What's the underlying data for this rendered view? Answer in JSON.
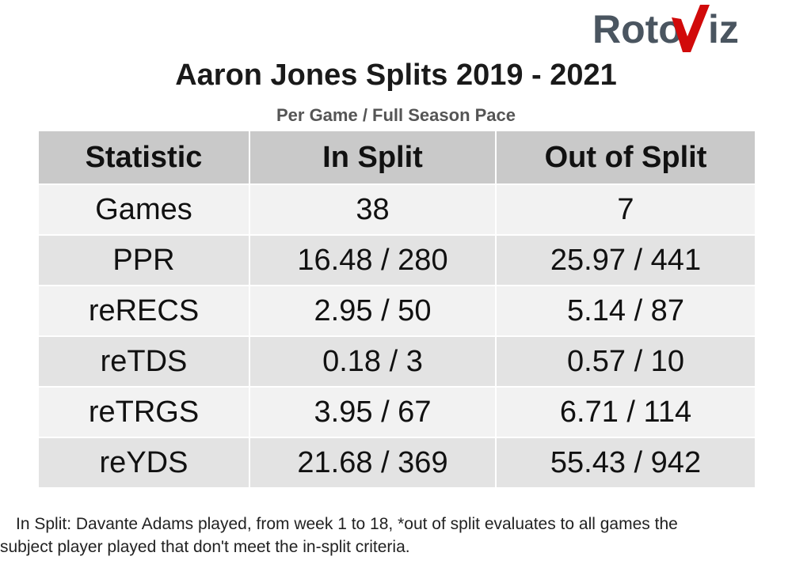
{
  "logo": {
    "text_left": "Roto",
    "text_right": "iz",
    "colors": {
      "text": "#4a5560",
      "accent": "#d10a0a"
    }
  },
  "header": {
    "title": "Aaron Jones Splits 2019 - 2021",
    "subtitle": "Per Game / Full Season Pace"
  },
  "table": {
    "columns": [
      "Statistic",
      "In Split",
      "Out of Split"
    ],
    "rows": [
      [
        "Games",
        "38",
        "7"
      ],
      [
        "PPR",
        "16.48 / 280",
        "25.97 / 441"
      ],
      [
        "reRECS",
        "2.95 / 50",
        "5.14 / 87"
      ],
      [
        "reTDS",
        "0.18 / 3",
        "0.57 / 10"
      ],
      [
        "reTRGS",
        "3.95 / 67",
        "6.71 / 114"
      ],
      [
        "reYDS",
        "21.68 / 369",
        "55.43 / 942"
      ]
    ]
  },
  "footnote": {
    "line1": "In Split: Davante Adams played, from week 1 to 18,  *out of split evaluates to all games the",
    "line2": "subject player played that don't meet the in-split criteria."
  }
}
